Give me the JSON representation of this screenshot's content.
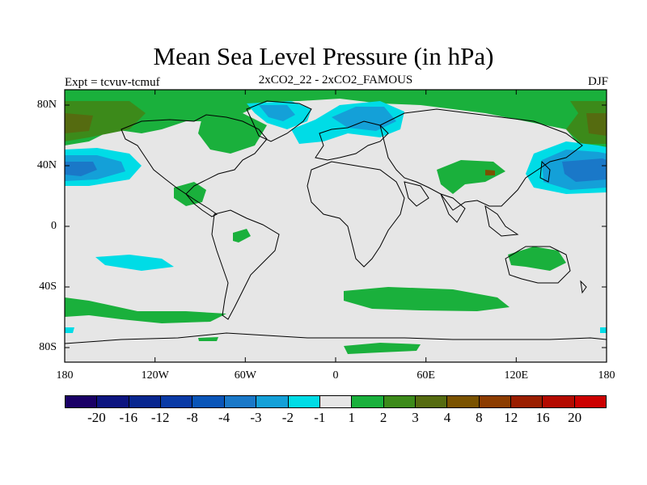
{
  "header": {
    "title": "Mean Sea Level Pressure (in hPa)",
    "left_label": "Expt = tcvuv-tcmuf",
    "center_label": "2xCO2_22 - 2xCO2_FAMOUS",
    "right_label": "DJF"
  },
  "map": {
    "background_color": "#e6e6e6",
    "coastline_color": "#000000",
    "lat_labels": [
      "80N",
      "40N",
      "0",
      "40S",
      "80S"
    ],
    "lon_labels": [
      "180",
      "120W",
      "60W",
      "0",
      "60E",
      "120E",
      "180"
    ]
  },
  "colorbar": {
    "colors": [
      "#1a0066",
      "#0d1580",
      "#08268f",
      "#0a3aa6",
      "#0a55b8",
      "#1a78c8",
      "#14a0d8",
      "#00dce6",
      "#e6e6e6",
      "#1ab03c",
      "#3c8a1a",
      "#556b10",
      "#7a5200",
      "#8c3c00",
      "#9a1e00",
      "#b40a00",
      "#cc0000"
    ],
    "labels": [
      "-20",
      "-16",
      "-12",
      "-8",
      "-4",
      "-3",
      "-2",
      "-1",
      "1",
      "2",
      "3",
      "4",
      "8",
      "12",
      "16",
      "20"
    ]
  }
}
